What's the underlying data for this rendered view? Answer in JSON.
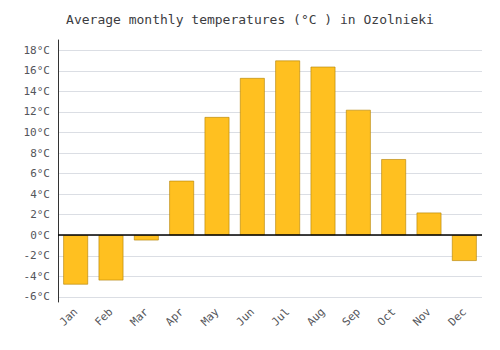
{
  "chart_data": {
    "type": "bar",
    "title": "Average monthly temperatures (°C ) in Ozolnieki",
    "categories": [
      "Jan",
      "Feb",
      "Mar",
      "Apr",
      "May",
      "Jun",
      "Jul",
      "Aug",
      "Sep",
      "Oct",
      "Nov",
      "Dec"
    ],
    "values": [
      -4.8,
      -4.4,
      -0.5,
      5.3,
      11.5,
      15.3,
      17.0,
      16.4,
      12.2,
      7.4,
      2.2,
      -2.5
    ],
    "color": "#FFC020",
    "ylim": [
      -6.5,
      19
    ],
    "yticks": [
      {
        "value": -6,
        "label": "-6°C"
      },
      {
        "value": -4,
        "label": "-4°C"
      },
      {
        "value": -2,
        "label": "-2°C"
      },
      {
        "value": 0,
        "label": "0°C"
      },
      {
        "value": 2,
        "label": "2°C"
      },
      {
        "value": 4,
        "label": "4°C"
      },
      {
        "value": 6,
        "label": "6°C"
      },
      {
        "value": 8,
        "label": "8°C"
      },
      {
        "value": 10,
        "label": "10°C"
      },
      {
        "value": 12,
        "label": "12°C"
      },
      {
        "value": 14,
        "label": "14°C"
      },
      {
        "value": 16,
        "label": "16°C"
      },
      {
        "value": 18,
        "label": "18°C"
      }
    ],
    "grid": true
  }
}
